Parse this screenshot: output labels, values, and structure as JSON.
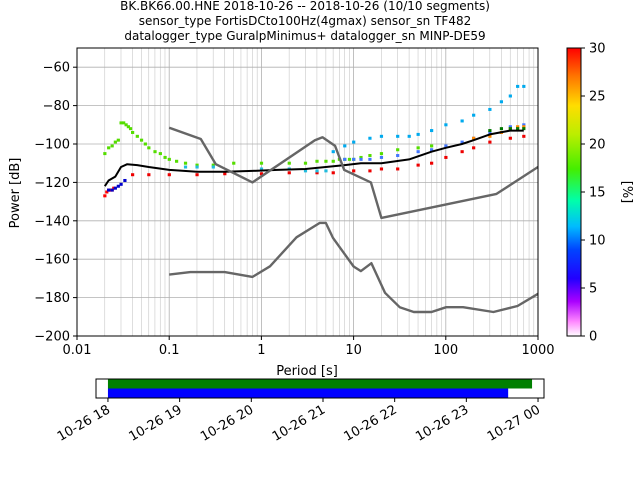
{
  "chart_data": {
    "type": "line",
    "title_lines": [
      "BK.BK66.00.HNE   2018-10-26 -- 2018-10-26  (10/10 segments)",
      "sensor_type FortisDCto100Hz(4gmax) sensor_sn TF482",
      "datalogger_type GuralpMinimus+ datalogger_sn MINP-DE59"
    ],
    "xlabel": "Period [s]",
    "ylabel": "Power [dB]",
    "xscale": "log",
    "xlim": [
      0.01,
      1000
    ],
    "ylim": [
      -200,
      -50
    ],
    "xticks": [
      0.01,
      0.1,
      1,
      10,
      100,
      1000
    ],
    "xtick_labels": [
      "0.01",
      "0.1",
      "1",
      "10",
      "100",
      "1000"
    ],
    "yticks": [
      -200,
      -180,
      -160,
      -140,
      -120,
      -100,
      -80,
      -60
    ],
    "ytick_labels": [
      "−200",
      "−180",
      "−160",
      "−140",
      "−120",
      "−100",
      "−80",
      "−60"
    ],
    "grid": true,
    "colorbar": {
      "label": "[%]",
      "range": [
        0,
        30
      ],
      "ticks": [
        0,
        5,
        10,
        15,
        20,
        25,
        30
      ],
      "tick_labels": [
        "0",
        "5",
        "10",
        "15",
        "20",
        "25",
        "30"
      ],
      "colormap": "pqlx"
    },
    "series": [
      {
        "role": "mean",
        "color": "#000000",
        "x": [
          0.02,
          0.022,
          0.026,
          0.03,
          0.035,
          0.045,
          0.06,
          0.1,
          0.2,
          0.4,
          0.8,
          1.5,
          3,
          5,
          8,
          12,
          20,
          40,
          70,
          100,
          150,
          200,
          300,
          500,
          700
        ],
        "y": [
          -122,
          -119,
          -117,
          -112,
          -110.5,
          -111,
          -112,
          -113.5,
          -114.5,
          -114.5,
          -114,
          -113.5,
          -113,
          -112,
          -111,
          -110,
          -110,
          -108,
          -104,
          -102,
          -100,
          -98,
          -95,
          -93,
          -93
        ]
      },
      {
        "role": "new_high_noise_model",
        "color": "#666666",
        "x": [
          0.1,
          0.22,
          0.32,
          0.8,
          3.8,
          4.6,
          6.3,
          7.9,
          15.4,
          20,
          354.8,
          1000
        ],
        "y": [
          -91.5,
          -97.4,
          -110.5,
          -120,
          -98,
          -96.5,
          -101,
          -113.5,
          -120,
          -138.5,
          -126,
          -112
        ]
      },
      {
        "role": "new_low_noise_model",
        "color": "#666666",
        "x": [
          0.1,
          0.17,
          0.4,
          0.8,
          1.24,
          2.4,
          4.3,
          5,
          6,
          10,
          12,
          15.6,
          21.9,
          31.6,
          45,
          70,
          101,
          154,
          328,
          600,
          1000
        ],
        "y": [
          -168,
          -166.7,
          -166.7,
          -169.2,
          -163.7,
          -148.6,
          -141.1,
          -141.1,
          -149,
          -163.8,
          -166.2,
          -162.1,
          -177.5,
          -185,
          -187.5,
          -187.5,
          -185,
          -185,
          -187.5,
          -184.4,
          -178
        ]
      }
    ],
    "histogram_cells": [
      {
        "x": [
          0.02,
          0.021,
          0.022,
          0.023,
          0.024,
          0.025
        ],
        "y": [
          -127,
          -125,
          -124,
          -124,
          -124,
          -123
        ],
        "color": "#ff0000"
      },
      {
        "x": [
          0.022,
          0.024,
          0.026,
          0.028,
          0.03,
          0.033
        ],
        "y": [
          -124,
          -124,
          -123,
          -122,
          -121,
          -119
        ],
        "color": "#0000cc"
      },
      {
        "x": [
          0.02,
          0.022,
          0.024,
          0.026,
          0.028,
          0.03,
          0.032,
          0.034,
          0.036,
          0.038,
          0.04,
          0.045,
          0.05,
          0.055,
          0.06,
          0.07,
          0.08,
          0.09,
          0.1,
          0.12,
          0.15,
          0.2,
          0.3,
          0.5,
          1,
          2,
          3,
          4,
          5,
          6,
          7,
          8,
          9,
          10,
          12,
          15,
          20,
          30,
          50,
          70
        ],
        "y": [
          -105,
          -102,
          -101,
          -99,
          -98,
          -89,
          -89,
          -90,
          -91,
          -92,
          -94,
          -96,
          -98,
          -100,
          -102,
          -104,
          -105,
          -107,
          -108,
          -109,
          -110,
          -111,
          -111,
          -110,
          -110,
          -110,
          -110,
          -109,
          -109,
          -109,
          -108,
          -108,
          -108,
          -108,
          -107,
          -106,
          -105,
          -103,
          -102,
          -101
        ],
        "color": "#55dd00"
      },
      {
        "x": [
          0.04,
          0.06,
          0.1,
          0.2,
          0.4,
          1,
          2,
          4,
          6,
          10,
          15,
          20,
          30,
          50,
          70,
          100,
          150,
          200,
          300,
          500,
          700
        ],
        "y": [
          -116,
          -116,
          -116,
          -116,
          -115.5,
          -115.5,
          -115,
          -115,
          -115,
          -114,
          -114,
          -113,
          -113,
          -111,
          -110,
          -107,
          -104,
          -102,
          -99,
          -97,
          -96
        ],
        "color": "#ee0000"
      },
      {
        "x": [
          0.15,
          0.2,
          0.3,
          1,
          2,
          3,
          4,
          5
        ],
        "y": [
          -112,
          -112,
          -112,
          -113,
          -113,
          -114,
          -114,
          -114
        ],
        "color": "#22bbdd"
      },
      {
        "x": [
          6,
          8,
          10,
          15,
          20,
          30,
          40,
          50,
          70,
          100,
          150,
          200,
          300,
          400,
          500,
          600,
          700
        ],
        "y": [
          -104,
          -101,
          -99,
          -97,
          -96,
          -96,
          -96,
          -95,
          -93,
          -90,
          -88,
          -85,
          -82,
          -78,
          -75,
          -70,
          -70
        ],
        "color": "#00aaee"
      },
      {
        "x": [
          8,
          10,
          12,
          15,
          20,
          30,
          50,
          70,
          100,
          150,
          200,
          300,
          500,
          700
        ],
        "y": [
          -108,
          -108,
          -108,
          -108,
          -107,
          -106,
          -104,
          -103,
          -101,
          -99,
          -97,
          -94,
          -91,
          -90
        ],
        "color": "#4477ff"
      },
      {
        "x": [
          200,
          300,
          400,
          500,
          600,
          700
        ],
        "y": [
          -97,
          -96,
          -94,
          -92,
          -91,
          -91
        ],
        "color": "#ff8800"
      },
      {
        "x": [
          300,
          400,
          500,
          600,
          700
        ],
        "y": [
          -93,
          -92,
          -92,
          -92,
          -92
        ],
        "color": "#007700"
      }
    ],
    "data_availability": {
      "xtick_labels": [
        "10-26 18",
        "10-26 19",
        "10-26 20",
        "10-26 21",
        "10-26 22",
        "10-26 23",
        "10-27 00"
      ],
      "bars": [
        {
          "start": "10-26 18:00",
          "end": "10-26 23:55",
          "color": "#008000"
        },
        {
          "start": "10-26 18:00",
          "end": "10-26 23:35",
          "color": "#0000ff"
        }
      ],
      "range": [
        "10-26 17:50",
        "10-27 00:05"
      ]
    }
  }
}
